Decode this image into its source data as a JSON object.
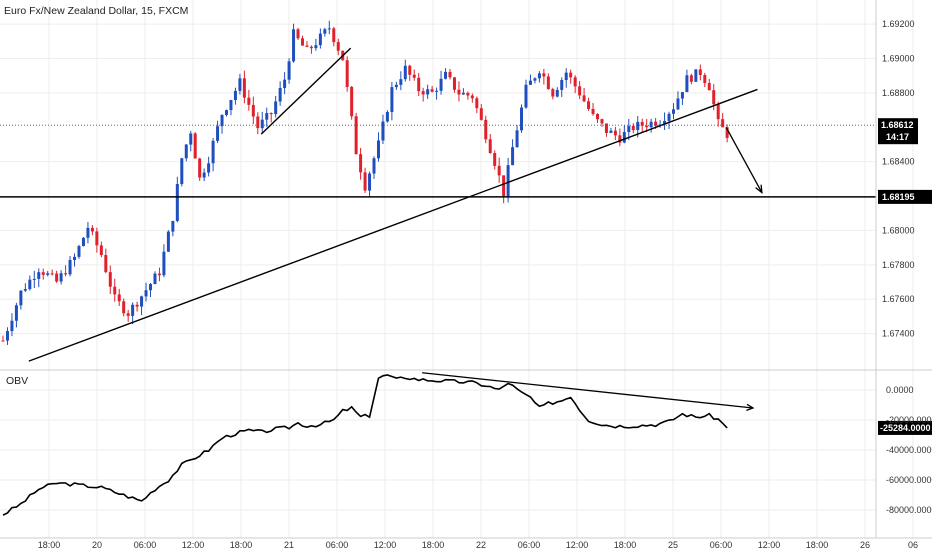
{
  "header": {
    "title": "Euro Fx/New Zealand Dollar, 15, FXCM",
    "indicator_label": "OBV"
  },
  "colors": {
    "up": "#1f4fbf",
    "down": "#e0202a",
    "obv": "#000000",
    "badge": "#000000",
    "grid": "#eeeeee"
  },
  "chart_data": [
    {
      "type": "candlestick",
      "title": "Euro Fx/New Zealand Dollar, 15, FXCM",
      "ylim": [
        1.672,
        1.6934
      ],
      "y_ticks": [
        {
          "v": 1.674,
          "label": "1.67400"
        },
        {
          "v": 1.676,
          "label": "1.67600"
        },
        {
          "v": 1.678,
          "label": "1.67800"
        },
        {
          "v": 1.68,
          "label": "1.68000"
        },
        {
          "v": 1.684,
          "label": "1.68400"
        },
        {
          "v": 1.688,
          "label": "1.68800"
        },
        {
          "v": 1.69,
          "label": "1.69000"
        },
        {
          "v": 1.692,
          "label": "1.69200"
        }
      ],
      "price_path": [
        [
          0,
          1.6736
        ],
        [
          4,
          1.6764
        ],
        [
          8,
          1.6778
        ],
        [
          12,
          1.677
        ],
        [
          16,
          1.6784
        ],
        [
          19,
          1.6802
        ],
        [
          22,
          1.6786
        ],
        [
          25,
          1.676
        ],
        [
          28,
          1.6752
        ],
        [
          31,
          1.6762
        ],
        [
          35,
          1.6776
        ],
        [
          38,
          1.6808
        ],
        [
          40,
          1.6842
        ],
        [
          42,
          1.6858
        ],
        [
          44,
          1.683
        ],
        [
          46,
          1.6842
        ],
        [
          49,
          1.6868
        ],
        [
          53,
          1.6886
        ],
        [
          57,
          1.686
        ],
        [
          60,
          1.6868
        ],
        [
          63,
          1.6888
        ],
        [
          65,
          1.6914
        ],
        [
          68,
          1.6904
        ],
        [
          71,
          1.6912
        ],
        [
          73,
          1.6918
        ],
        [
          76,
          1.69
        ],
        [
          79,
          1.6846
        ],
        [
          81,
          1.6826
        ],
        [
          84,
          1.685
        ],
        [
          87,
          1.6882
        ],
        [
          90,
          1.6894
        ],
        [
          93,
          1.6882
        ],
        [
          96,
          1.688
        ],
        [
          99,
          1.689
        ],
        [
          102,
          1.688
        ],
        [
          105,
          1.6878
        ],
        [
          108,
          1.6856
        ],
        [
          110,
          1.684
        ],
        [
          112,
          1.6822
        ],
        [
          114,
          1.6848
        ],
        [
          117,
          1.6882
        ],
        [
          120,
          1.6894
        ],
        [
          123,
          1.688
        ],
        [
          126,
          1.6892
        ],
        [
          129,
          1.688
        ],
        [
          132,
          1.6866
        ],
        [
          135,
          1.6858
        ],
        [
          138,
          1.6854
        ],
        [
          141,
          1.686
        ],
        [
          144,
          1.6862
        ],
        [
          147,
          1.6864
        ],
        [
          150,
          1.6872
        ],
        [
          153,
          1.6888
        ],
        [
          156,
          1.6892
        ],
        [
          158,
          1.6884
        ],
        [
          160,
          1.6862
        ],
        [
          162,
          1.6856
        ]
      ],
      "candle_count": 163,
      "horizontal_level": {
        "value": 1.68195,
        "label": "1.68195"
      },
      "current_price": {
        "value": 1.68612,
        "label": "1.68612",
        "countdown": "14:17"
      },
      "trendlines": [
        {
          "from": [
            6,
            1.6724
          ],
          "to": [
            169,
            1.6882
          ]
        },
        {
          "from": [
            58,
            1.6856
          ],
          "to": [
            78,
            1.6906
          ]
        }
      ],
      "arrows": [
        {
          "from": [
            162,
            1.686
          ],
          "to": [
            170,
            1.6822
          ]
        }
      ]
    },
    {
      "type": "line",
      "name": "OBV",
      "ylim": [
        -90000,
        12000
      ],
      "y_ticks": [
        {
          "v": 0,
          "label": "0.0000"
        },
        {
          "v": -20000,
          "label": "-20000.0000"
        },
        {
          "v": -40000,
          "label": "-40000.0000"
        },
        {
          "v": -60000,
          "label": "-60000.0000"
        },
        {
          "v": -80000,
          "label": "-80000.0000"
        }
      ],
      "values_path": [
        [
          0,
          -83000
        ],
        [
          4,
          -76000
        ],
        [
          8,
          -66000
        ],
        [
          12,
          -62000
        ],
        [
          16,
          -63000
        ],
        [
          19,
          -64000
        ],
        [
          22,
          -65000
        ],
        [
          25,
          -68000
        ],
        [
          28,
          -71000
        ],
        [
          31,
          -74000
        ],
        [
          34,
          -66000
        ],
        [
          37,
          -60000
        ],
        [
          40,
          -50000
        ],
        [
          43,
          -45000
        ],
        [
          46,
          -40000
        ],
        [
          49,
          -32000
        ],
        [
          52,
          -29000
        ],
        [
          55,
          -27000
        ],
        [
          58,
          -28000
        ],
        [
          61,
          -26000
        ],
        [
          64,
          -25000
        ],
        [
          66,
          -22000
        ],
        [
          68,
          -24000
        ],
        [
          71,
          -23000
        ],
        [
          74,
          -20000
        ],
        [
          76,
          -14000
        ],
        [
          78,
          -12000
        ],
        [
          80,
          -18000
        ],
        [
          82,
          -17000
        ],
        [
          84,
          8000
        ],
        [
          86,
          10000
        ],
        [
          88,
          7000
        ],
        [
          90,
          8500
        ],
        [
          93,
          7000
        ],
        [
          96,
          6500
        ],
        [
          99,
          6000
        ],
        [
          102,
          5500
        ],
        [
          105,
          5000
        ],
        [
          108,
          3000
        ],
        [
          111,
          0
        ],
        [
          113,
          5000
        ],
        [
          116,
          -2000
        ],
        [
          118,
          -5000
        ],
        [
          120,
          -12000
        ],
        [
          122,
          -9000
        ],
        [
          125,
          -7000
        ],
        [
          127,
          -4000
        ],
        [
          129,
          -13000
        ],
        [
          131,
          -20000
        ],
        [
          134,
          -23000
        ],
        [
          137,
          -24000
        ],
        [
          140,
          -24000
        ],
        [
          143,
          -23500
        ],
        [
          146,
          -23000
        ],
        [
          149,
          -21000
        ],
        [
          152,
          -16000
        ],
        [
          155,
          -18000
        ],
        [
          158,
          -17000
        ],
        [
          160,
          -19500
        ],
        [
          162,
          -25284
        ]
      ],
      "current_value": {
        "value": -25284,
        "label": "-25284.0000"
      },
      "trendlines": [
        {
          "from": [
            94,
            11500
          ],
          "to": [
            168,
            -12000
          ]
        }
      ]
    }
  ],
  "x_axis": {
    "ticks": [
      {
        "i": 2,
        "label": "18:00"
      },
      {
        "i": 8,
        "label": "20"
      },
      {
        "i": 14,
        "label": "06:00"
      },
      {
        "i": 20,
        "label": "12:00"
      },
      {
        "i": 26,
        "label": "18:00"
      },
      {
        "i": 32,
        "label": "21"
      },
      {
        "i": 38,
        "label": "06:00"
      },
      {
        "i": 44,
        "label": "12:00"
      },
      {
        "i": 50,
        "label": "18:00"
      },
      {
        "i": 56,
        "label": "22"
      },
      {
        "i": 62,
        "label": "06:00"
      },
      {
        "i": 68,
        "label": "12:00"
      },
      {
        "i": 74,
        "label": "18:00"
      },
      {
        "i": 80,
        "label": "25"
      },
      {
        "i": 86,
        "label": "06:00"
      },
      {
        "i": 92,
        "label": "12:00"
      },
      {
        "i": 98,
        "label": "18:00"
      },
      {
        "i": 104,
        "label": "26"
      },
      {
        "i": 110,
        "label": "06"
      }
    ]
  }
}
